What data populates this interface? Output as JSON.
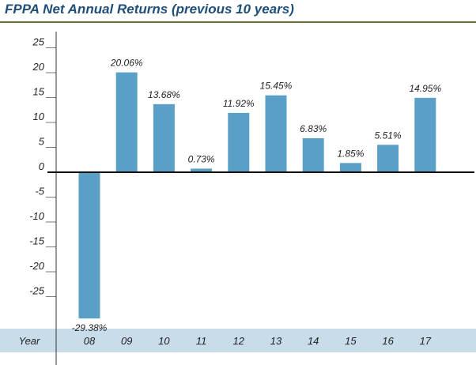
{
  "title": "FPPA Net Annual Returns (previous 10 years)",
  "colors": {
    "bar": "#5a9fc5",
    "title": "#1f4e79",
    "year_band": "#c8dce9",
    "axis": "#111111"
  },
  "chart_data": {
    "type": "bar",
    "title": "FPPA Net Annual Returns (previous 10 years)",
    "xlabel": "Year",
    "ylabel": "",
    "ylim": [
      -30,
      25
    ],
    "yticks": [
      25,
      20,
      15,
      10,
      5,
      0,
      -5,
      -10,
      -15,
      -20,
      -25
    ],
    "categories": [
      "08",
      "09",
      "10",
      "11",
      "12",
      "13",
      "14",
      "15",
      "16",
      "17"
    ],
    "values": [
      -29.38,
      20.06,
      13.68,
      0.73,
      11.92,
      15.45,
      6.83,
      1.85,
      5.51,
      14.95
    ],
    "data_labels": [
      "-29.38%",
      "20.06%",
      "13.68%",
      "0.73%",
      "11.92%",
      "15.45%",
      "6.83%",
      "1.85%",
      "5.51%",
      "14.95%"
    ],
    "grid": false,
    "legend": "none"
  }
}
